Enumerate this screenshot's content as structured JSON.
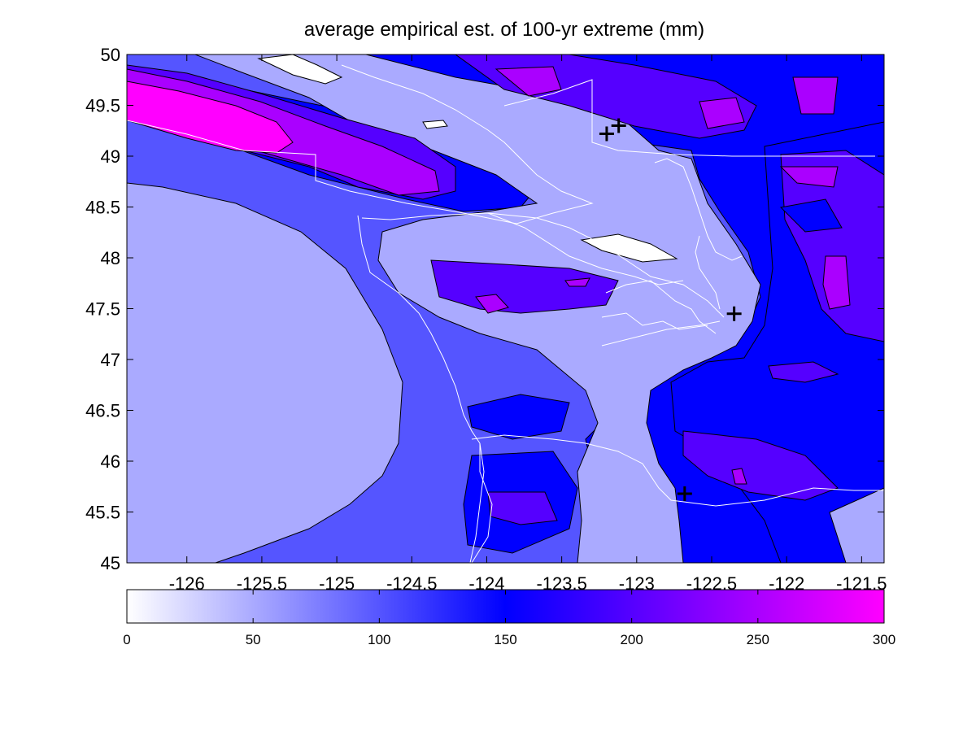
{
  "chart_data": {
    "type": "contour",
    "title": "average empirical est. of 100-yr extreme (mm)",
    "xlabel": "",
    "ylabel": "",
    "xlim": [
      -126.4,
      -121.35
    ],
    "ylim": [
      45,
      50
    ],
    "x_ticks": [
      -126,
      -125.5,
      -125,
      -124.5,
      -124,
      -123.5,
      -123,
      -122.5,
      -122,
      -121.5
    ],
    "y_ticks": [
      45,
      45.5,
      46,
      46.5,
      47,
      47.5,
      48,
      48.5,
      49,
      49.5,
      50
    ],
    "colorbar": {
      "range": [
        0,
        300
      ],
      "ticks": [
        0,
        50,
        100,
        150,
        200,
        250,
        300
      ],
      "colormap": [
        "#ffffff",
        "#0000ff",
        "#ff00ff"
      ]
    },
    "levels": [
      0,
      50,
      100,
      150,
      200,
      250,
      300
    ],
    "markers": [
      {
        "lon": -123.2,
        "lat": 49.22
      },
      {
        "lon": -123.12,
        "lat": 49.3
      },
      {
        "lon": -122.35,
        "lat": 47.45
      },
      {
        "lon": -122.68,
        "lat": 45.68
      }
    ],
    "grid": false,
    "legend": "colorbar-bottom"
  },
  "colors": {
    "level_0_50": "#ffffff",
    "level_50_100": "#aaaaff",
    "level_100_150": "#5555ff",
    "level_150_200": "#0000ff",
    "level_200_250": "#5500ff",
    "level_250_300": "#aa00ff",
    "level_300": "#ff00ff",
    "coast": "#ffffff",
    "marker": "#000000"
  }
}
